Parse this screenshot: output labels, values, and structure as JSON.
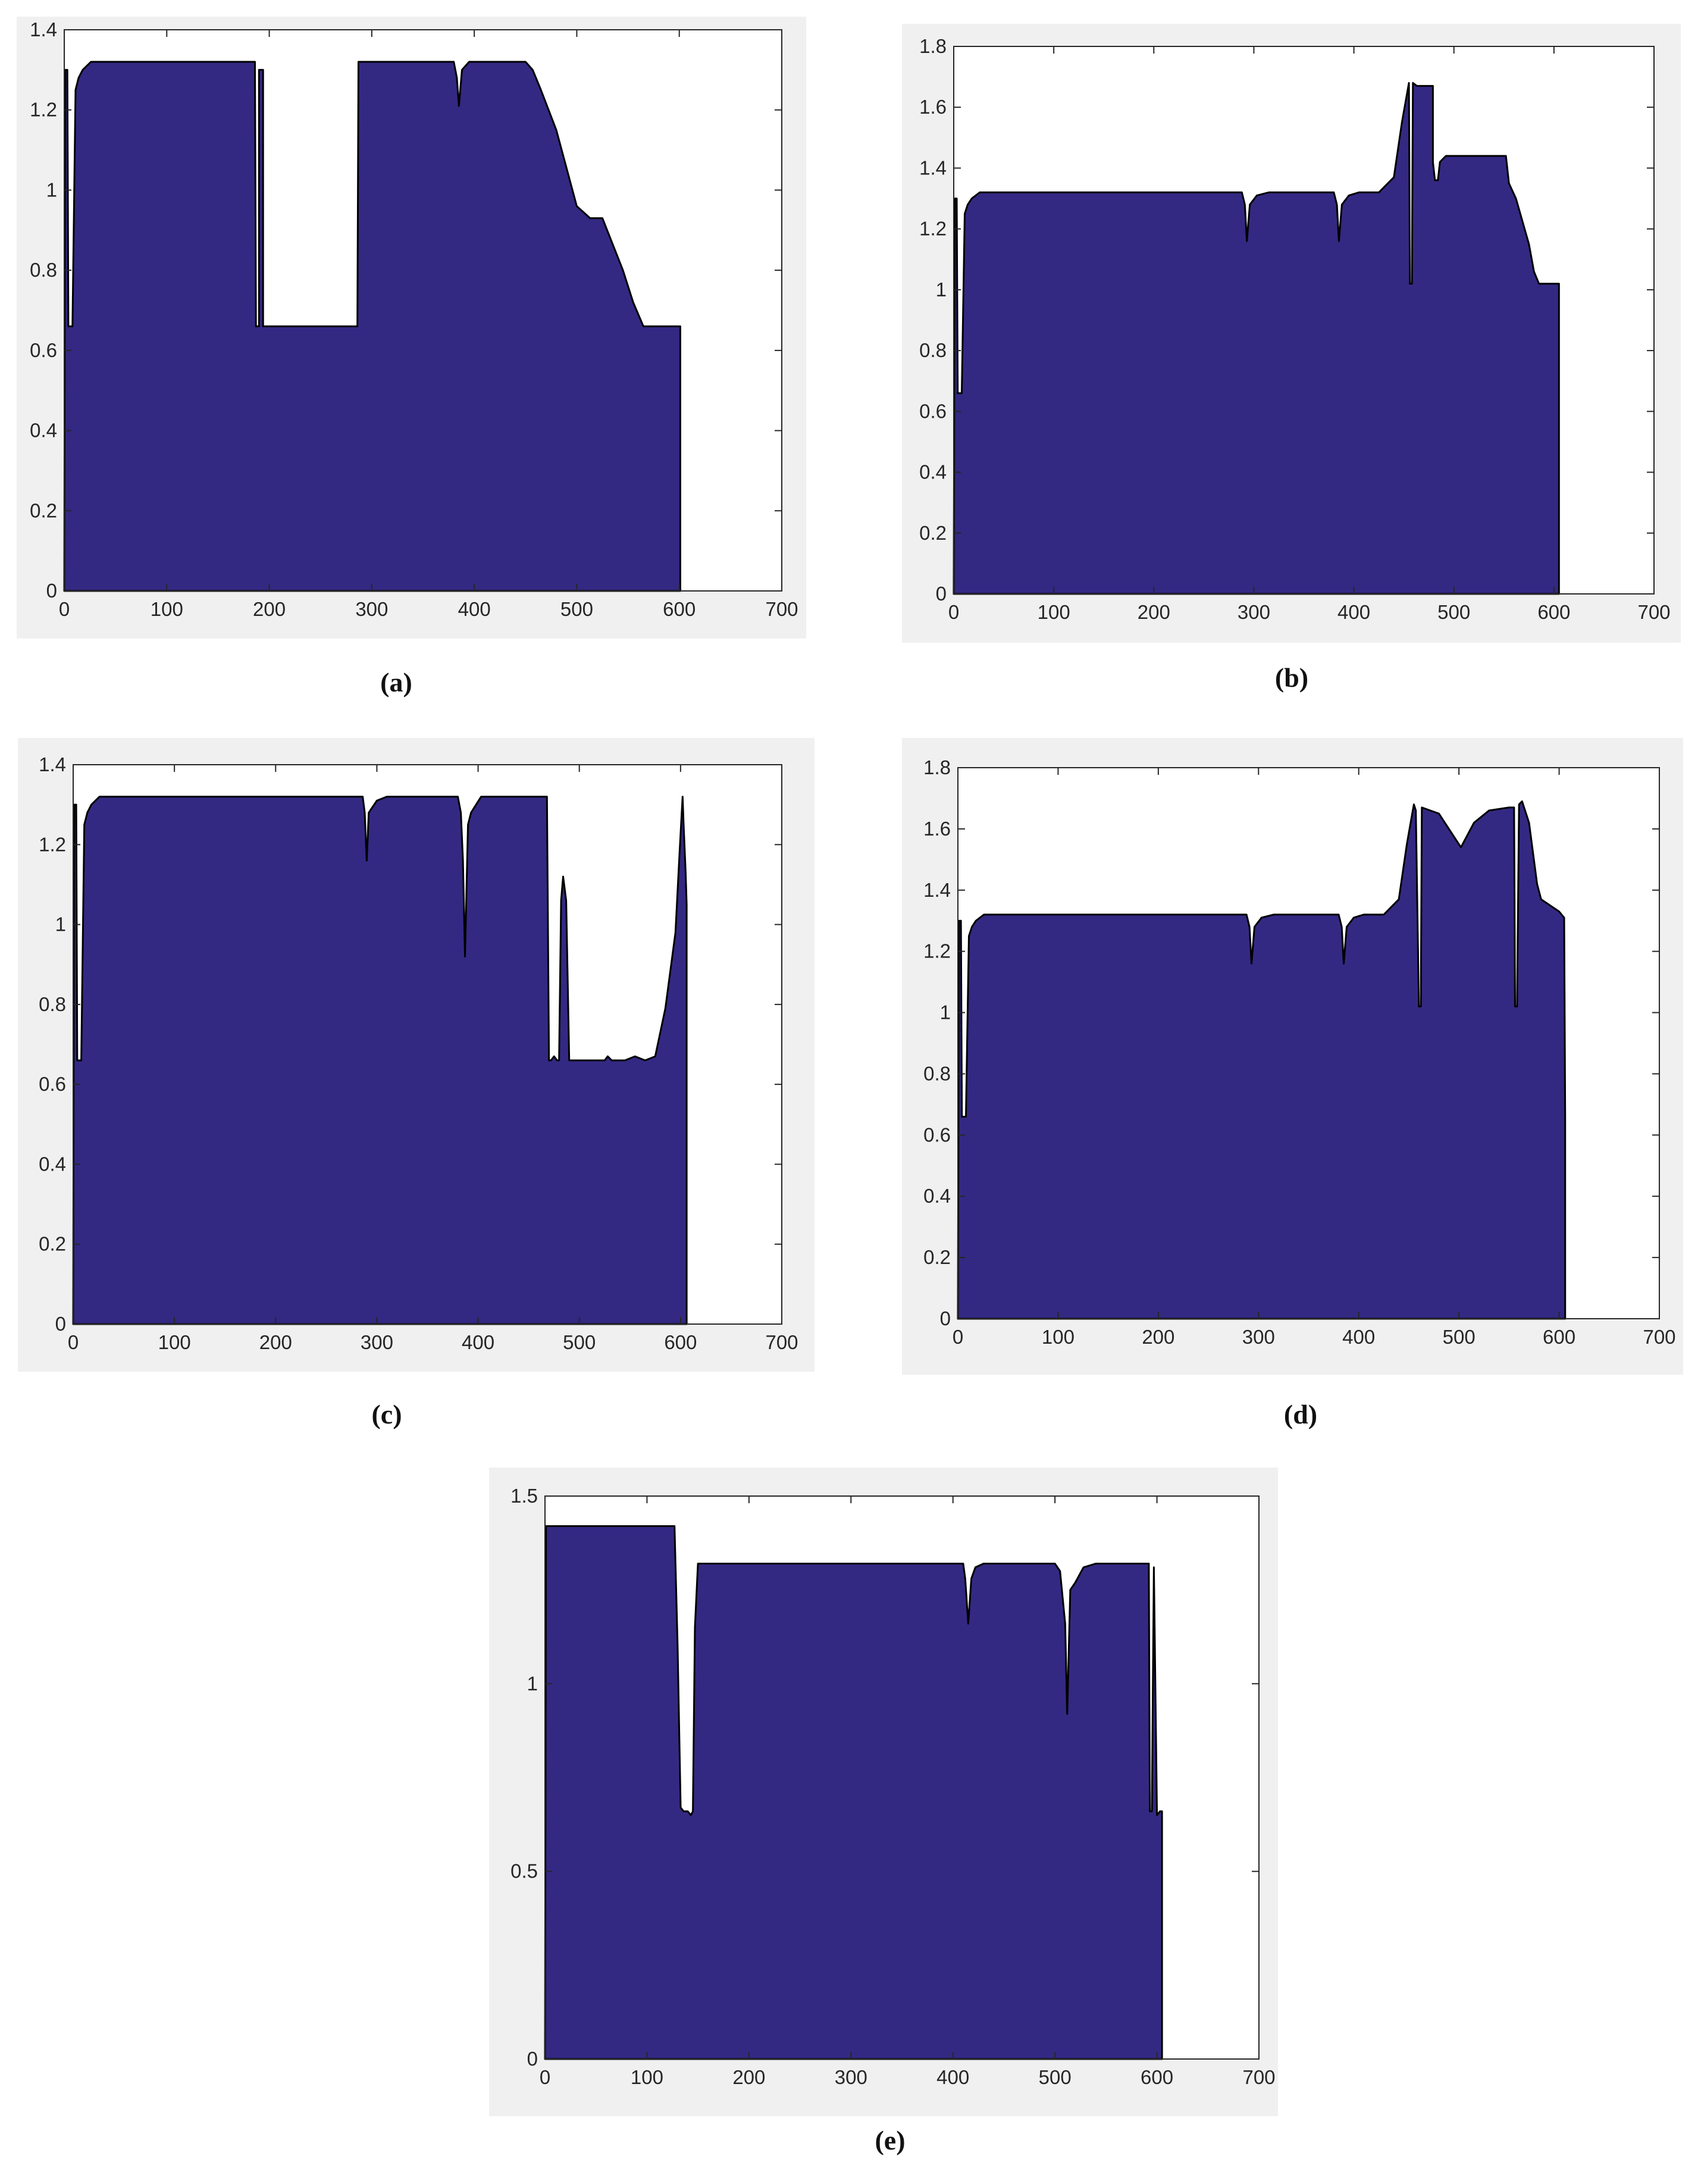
{
  "figure": {
    "colors": {
      "fill": "#332983",
      "outline": "#000000",
      "panel_bg": "#f0f0f0"
    }
  },
  "chart_data": [
    {
      "id": "a",
      "type": "area",
      "caption": "(a)",
      "xlim": [
        0,
        700
      ],
      "ylim": [
        0,
        1.4
      ],
      "xticks": [
        0,
        100,
        200,
        300,
        400,
        500,
        600,
        700
      ],
      "yticks": [
        0,
        0.2,
        0.4,
        0.6,
        0.8,
        1,
        1.2,
        1.4
      ],
      "xtick_labels": [
        "0",
        "100",
        "200",
        "300",
        "400",
        "500",
        "600",
        "700"
      ],
      "ytick_labels": [
        "0",
        "0.2",
        "0.4",
        "0.6",
        "0.8",
        "1",
        "1.2",
        "1.4"
      ],
      "grid": false,
      "x": [
        0,
        1,
        3,
        4,
        7,
        8,
        11,
        14,
        18,
        26,
        35,
        80,
        150,
        186,
        187,
        190,
        190,
        194,
        194,
        195,
        250,
        286,
        287,
        290,
        300,
        380,
        383,
        385,
        388,
        395,
        405,
        440,
        450,
        457,
        465,
        480,
        500,
        513,
        525,
        545,
        555,
        565,
        575,
        600,
        601,
        601
      ],
      "y": [
        0,
        1.3,
        1.3,
        0.66,
        0.66,
        0.66,
        1.25,
        1.28,
        1.3,
        1.32,
        1.32,
        1.32,
        1.32,
        1.32,
        0.66,
        0.66,
        1.3,
        1.3,
        0.66,
        0.66,
        0.66,
        0.66,
        1.32,
        1.32,
        1.32,
        1.32,
        1.28,
        1.21,
        1.3,
        1.32,
        1.32,
        1.32,
        1.32,
        1.3,
        1.25,
        1.15,
        0.96,
        0.93,
        0.93,
        0.8,
        0.72,
        0.66,
        0.66,
        0.66,
        0.66,
        0
      ]
    },
    {
      "id": "b",
      "type": "area",
      "caption": "(b)",
      "xlim": [
        0,
        700
      ],
      "ylim": [
        0,
        1.8
      ],
      "xticks": [
        0,
        100,
        200,
        300,
        400,
        500,
        600,
        700
      ],
      "yticks": [
        0,
        0.2,
        0.4,
        0.6,
        0.8,
        1,
        1.2,
        1.4,
        1.6,
        1.8
      ],
      "xtick_labels": [
        "0",
        "100",
        "200",
        "300",
        "400",
        "500",
        "600",
        "700"
      ],
      "ytick_labels": [
        "0",
        "0.2",
        "0.4",
        "0.6",
        "0.8",
        "1",
        "1.2",
        "1.4",
        "1.6",
        "1.8"
      ],
      "grid": false,
      "x": [
        0,
        1,
        3,
        4,
        7,
        8,
        11,
        14,
        18,
        26,
        35,
        100,
        200,
        288,
        291,
        293,
        296,
        303,
        315,
        380,
        383,
        385,
        388,
        395,
        405,
        425,
        440,
        448,
        455,
        456,
        458,
        459,
        463,
        463,
        479,
        479,
        481,
        484,
        486,
        492,
        492,
        500,
        525,
        552,
        555,
        562,
        575,
        580,
        585,
        595,
        604,
        605,
        605
      ],
      "y": [
        0,
        1.3,
        1.3,
        0.66,
        0.66,
        0.66,
        1.25,
        1.28,
        1.3,
        1.32,
        1.32,
        1.32,
        1.32,
        1.32,
        1.28,
        1.16,
        1.28,
        1.31,
        1.32,
        1.32,
        1.28,
        1.16,
        1.28,
        1.31,
        1.32,
        1.32,
        1.37,
        1.55,
        1.68,
        1.02,
        1.02,
        1.68,
        1.67,
        1.67,
        1.67,
        1.42,
        1.36,
        1.36,
        1.42,
        1.44,
        1.44,
        1.44,
        1.44,
        1.44,
        1.35,
        1.3,
        1.15,
        1.06,
        1.02,
        1.02,
        1.02,
        1.02,
        0
      ]
    },
    {
      "id": "c",
      "type": "area",
      "caption": "(c)",
      "xlim": [
        0,
        700
      ],
      "ylim": [
        0,
        1.4
      ],
      "xticks": [
        0,
        100,
        200,
        300,
        400,
        500,
        600,
        700
      ],
      "yticks": [
        0,
        0.2,
        0.4,
        0.6,
        0.8,
        1,
        1.2,
        1.4
      ],
      "xtick_labels": [
        "0",
        "100",
        "200",
        "300",
        "400",
        "500",
        "600",
        "700"
      ],
      "ytick_labels": [
        "0",
        "0.2",
        "0.4",
        "0.6",
        "0.8",
        "1",
        "1.2",
        "1.4"
      ],
      "grid": false,
      "x": [
        0,
        1,
        3,
        4,
        7,
        8,
        11,
        14,
        18,
        26,
        35,
        100,
        200,
        286,
        288,
        290,
        292,
        300,
        310,
        380,
        383,
        385,
        387,
        390,
        393,
        403,
        415,
        468,
        470,
        472,
        475,
        478,
        480,
        482,
        484,
        487,
        490,
        492,
        494,
        500,
        525,
        528,
        532,
        545,
        555,
        565,
        575,
        585,
        595,
        599,
        602,
        603,
        605,
        606,
        606
      ],
      "y": [
        0,
        1.3,
        1.3,
        0.66,
        0.66,
        0.66,
        1.25,
        1.28,
        1.3,
        1.32,
        1.32,
        1.32,
        1.32,
        1.32,
        1.28,
        1.16,
        1.28,
        1.31,
        1.32,
        1.32,
        1.28,
        1.16,
        0.92,
        1.25,
        1.28,
        1.32,
        1.32,
        1.32,
        0.66,
        0.66,
        0.67,
        0.66,
        0.66,
        1.06,
        1.12,
        1.06,
        0.66,
        0.66,
        0.66,
        0.66,
        0.66,
        0.67,
        0.66,
        0.66,
        0.67,
        0.66,
        0.67,
        0.79,
        0.98,
        1.18,
        1.32,
        1.25,
        1.13,
        1.05,
        0
      ]
    },
    {
      "id": "d",
      "type": "area",
      "caption": "(d)",
      "xlim": [
        0,
        700
      ],
      "ylim": [
        0,
        1.8
      ],
      "xticks": [
        0,
        100,
        200,
        300,
        400,
        500,
        600,
        700
      ],
      "yticks": [
        0,
        0.2,
        0.4,
        0.6,
        0.8,
        1,
        1.2,
        1.4,
        1.6,
        1.8
      ],
      "xtick_labels": [
        "0",
        "100",
        "200",
        "300",
        "400",
        "500",
        "600",
        "700"
      ],
      "ytick_labels": [
        "0",
        "0.2",
        "0.4",
        "0.6",
        "0.8",
        "1",
        "1.2",
        "1.4",
        "1.6",
        "1.8"
      ],
      "grid": false,
      "x": [
        0,
        1,
        3,
        4,
        7,
        8,
        11,
        14,
        18,
        26,
        35,
        100,
        200,
        288,
        291,
        293,
        296,
        303,
        315,
        380,
        383,
        385,
        388,
        395,
        405,
        425,
        440,
        448,
        455,
        457,
        460,
        462,
        463,
        480,
        490,
        502,
        515,
        530,
        550,
        555,
        556,
        558,
        560,
        563,
        570,
        578,
        582,
        600,
        605,
        606,
        606
      ],
      "y": [
        0,
        1.3,
        1.3,
        0.66,
        0.66,
        0.66,
        1.25,
        1.28,
        1.3,
        1.32,
        1.32,
        1.32,
        1.32,
        1.32,
        1.28,
        1.16,
        1.28,
        1.31,
        1.32,
        1.32,
        1.28,
        1.16,
        1.28,
        1.31,
        1.32,
        1.32,
        1.37,
        1.55,
        1.68,
        1.66,
        1.02,
        1.02,
        1.67,
        1.65,
        1.6,
        1.54,
        1.62,
        1.66,
        1.67,
        1.67,
        1.02,
        1.02,
        1.68,
        1.69,
        1.62,
        1.42,
        1.37,
        1.33,
        1.31,
        0.66,
        0
      ]
    },
    {
      "id": "e",
      "type": "area",
      "caption": "(e)",
      "xlim": [
        0,
        700
      ],
      "ylim": [
        0,
        1.5
      ],
      "xticks": [
        0,
        100,
        200,
        300,
        400,
        500,
        600,
        700
      ],
      "yticks": [
        0,
        0.5,
        1,
        1.5
      ],
      "xtick_labels": [
        "0",
        "100",
        "200",
        "300",
        "400",
        "500",
        "600",
        "700"
      ],
      "ytick_labels": [
        "0",
        "0.5",
        "1",
        "1.5"
      ],
      "grid": false,
      "x": [
        0,
        1,
        100,
        127,
        130,
        133,
        136,
        140,
        143,
        145,
        147,
        150,
        153,
        200,
        300,
        410,
        412,
        415,
        418,
        422,
        430,
        500,
        505,
        510,
        512,
        515,
        520,
        528,
        540,
        592,
        593,
        595,
        597,
        600,
        603,
        605,
        605
      ],
      "y": [
        0,
        1.42,
        1.42,
        1.42,
        1.1,
        0.67,
        0.66,
        0.66,
        0.65,
        0.66,
        1.15,
        1.32,
        1.32,
        1.32,
        1.32,
        1.32,
        1.28,
        1.16,
        1.28,
        1.31,
        1.32,
        1.32,
        1.3,
        1.16,
        0.92,
        1.25,
        1.27,
        1.31,
        1.32,
        1.32,
        0.66,
        0.66,
        1.31,
        0.65,
        0.66,
        0.66,
        0
      ]
    }
  ]
}
